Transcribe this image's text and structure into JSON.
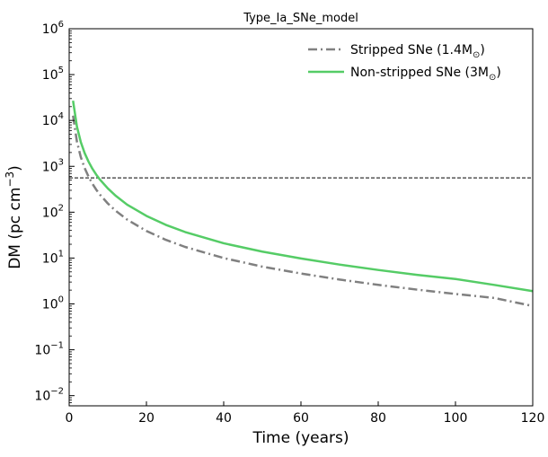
{
  "chart_data": {
    "type": "line",
    "title": "Type_Ia_SNe_model",
    "xlabel": "Time (years)",
    "ylabel_base": "DM (pc cm",
    "ylabel_sup": "−3",
    "ylabel_close": ")",
    "xlim": [
      0,
      120
    ],
    "ylim": [
      0.006,
      1000000
    ],
    "yscale": "log",
    "xticks": [
      0,
      20,
      40,
      60,
      80,
      100,
      120
    ],
    "xtick_labels": [
      "0",
      "20",
      "40",
      "60",
      "80",
      "100",
      "120"
    ],
    "yticks": [
      0.01,
      0.1,
      1,
      10,
      100,
      1000,
      10000,
      100000,
      1000000
    ],
    "ytick_exponents": [
      "−2",
      "−1",
      "0",
      "1",
      "2",
      "3",
      "4",
      "5",
      "6"
    ],
    "ytick_base": "10",
    "hline": {
      "y": 560,
      "style": "dashed",
      "color": "#333333"
    },
    "legend_position": "top-right",
    "series": [
      {
        "name": "Stripped SNe (1.4M",
        "name_sub": "⊙",
        "name_close": ")",
        "color": "#808080",
        "style": "dashdot",
        "x": [
          1,
          2,
          3,
          4,
          5,
          6,
          7,
          8,
          10,
          12,
          15,
          20,
          25,
          30,
          40,
          50,
          60,
          70,
          80,
          90,
          100,
          110,
          120
        ],
        "y": [
          12700,
          3480,
          1600,
          920,
          600,
          420,
          310,
          240,
          155,
          108,
          69,
          39,
          25,
          17.5,
          10,
          6.5,
          4.6,
          3.4,
          2.6,
          2.05,
          1.65,
          1.35,
          0.9
        ]
      },
      {
        "name": "Non-stripped SNe (3M",
        "name_sub": "⊙",
        "name_close": ")",
        "color": "#55cc66",
        "style": "solid",
        "x": [
          1,
          2,
          3,
          4,
          5,
          6,
          7,
          8,
          10,
          12,
          15,
          20,
          25,
          30,
          40,
          50,
          60,
          70,
          80,
          90,
          100,
          110,
          120
        ],
        "y": [
          27000,
          7400,
          3400,
          1950,
          1270,
          890,
          660,
          510,
          330,
          230,
          146,
          83,
          53,
          37,
          21,
          13.8,
          9.8,
          7.2,
          5.5,
          4.3,
          3.5,
          2.6,
          1.9
        ]
      }
    ]
  }
}
